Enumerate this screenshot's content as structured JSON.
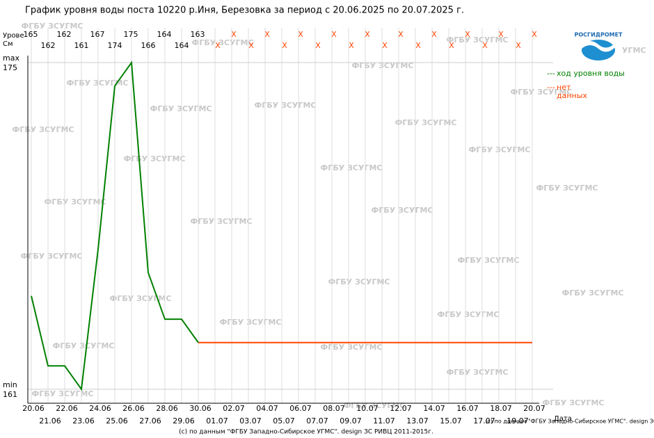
{
  "chart_data": {
    "type": "line",
    "title": "График уровня воды поста 10220 р.Иня, Березовка за период с 20.06.2025 по 20.07.2025 г.",
    "y_label": [
      "Урове",
      "См"
    ],
    "x_label": "Дата",
    "y_max_label": "max",
    "y_min_label": "min",
    "categories": [
      "20.06",
      "21.06",
      "22.06",
      "23.06",
      "24.06",
      "25.06",
      "26.06",
      "27.06",
      "28.06",
      "29.06",
      "30.06",
      "01.07",
      "02.07",
      "03.07",
      "04.07",
      "05.07",
      "06.07",
      "07.07",
      "08.07",
      "09.07",
      "10.07",
      "11.07",
      "12.07",
      "13.07",
      "14.07",
      "15.07",
      "16.07",
      "17.07",
      "18.07",
      "19.07",
      "20.07"
    ],
    "series": [
      {
        "name": "ход уровня воды",
        "color": "#008000",
        "values": [
          165,
          162,
          162,
          161,
          167,
          174,
          175,
          166,
          164,
          164,
          163,
          null,
          null,
          null,
          null,
          null,
          null,
          null,
          null,
          null,
          null,
          null,
          null,
          null,
          null,
          null,
          null,
          null,
          null,
          null,
          null
        ]
      },
      {
        "name": "нет данных",
        "color": "#ff4500",
        "values": [
          null,
          null,
          null,
          null,
          null,
          null,
          null,
          null,
          null,
          null,
          163,
          163,
          163,
          163,
          163,
          163,
          163,
          163,
          163,
          163,
          163,
          163,
          163,
          163,
          163,
          163,
          163,
          163,
          163,
          163,
          163
        ]
      }
    ],
    "missing_label": "X",
    "legend_marker": "---",
    "ylim": [
      160.4,
      175
    ],
    "yticks": [
      161,
      175
    ],
    "watermark": "ФГБУ ЗСУГМС",
    "logo": {
      "name": "РОСГИДРОМЕТ",
      "sub": "УГМС"
    },
    "footer": "(с) по данным \"ФГБУ Западно-Сибирское УГМС\". design ЗС РИВЦ 2011-2015г."
  }
}
